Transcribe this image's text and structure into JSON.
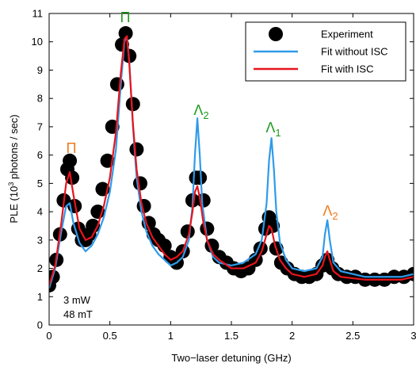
{
  "chart_data": {
    "type": "line",
    "xlabel": "Two−laser detuning (GHz)",
    "ylabel": {
      "text": "PLE (10",
      "sup": "3",
      "rest": " photons / sec)"
    },
    "xlim": [
      0,
      3
    ],
    "ylim": [
      0,
      11
    ],
    "xticks": [
      0,
      0.5,
      1,
      1.5,
      2,
      2.5,
      3
    ],
    "yticks": [
      0,
      1,
      2,
      3,
      4,
      5,
      6,
      7,
      8,
      9,
      10,
      11
    ],
    "legend": "upper right",
    "notes": [
      "3 mW",
      "48 mT"
    ],
    "annotations": [
      {
        "text": "Π",
        "color": "#f07a1c"
      },
      {
        "text": "Π",
        "color": "#1e9a1e"
      },
      {
        "text": "Λ",
        "sub": "2",
        "color": "#1e9a1e"
      },
      {
        "text": "Λ",
        "sub": "1",
        "color": "#1e9a1e"
      },
      {
        "text": "Λ",
        "sub": "2",
        "color": "#f07a1c"
      }
    ],
    "series": [
      {
        "name": "Experiment",
        "color": "#000000",
        "style": "dots",
        "x": [
          0,
          0.03,
          0.06,
          0.09,
          0.12,
          0.15,
          0.17,
          0.19,
          0.21,
          0.24,
          0.27,
          0.3,
          0.33,
          0.36,
          0.4,
          0.44,
          0.48,
          0.52,
          0.56,
          0.6,
          0.63,
          0.66,
          0.69,
          0.72,
          0.75,
          0.78,
          0.82,
          0.86,
          0.9,
          0.95,
          1,
          1.05,
          1.1,
          1.14,
          1.18,
          1.21,
          1.24,
          1.27,
          1.3,
          1.34,
          1.4,
          1.46,
          1.52,
          1.58,
          1.64,
          1.7,
          1.74,
          1.78,
          1.81,
          1.84,
          1.87,
          1.91,
          1.96,
          2.02,
          2.08,
          2.14,
          2.2,
          2.25,
          2.29,
          2.33,
          2.38,
          2.45,
          2.52,
          2.6,
          2.68,
          2.76,
          2.84,
          2.92,
          3
        ],
        "values": [
          1.4,
          1.7,
          2.3,
          3.2,
          4.4,
          5.5,
          5.8,
          5.2,
          4.2,
          3.4,
          3.0,
          3.0,
          3.2,
          3.5,
          4.0,
          4.8,
          5.8,
          7.0,
          8.5,
          9.9,
          10.3,
          9.5,
          7.8,
          6.2,
          5.0,
          4.2,
          3.6,
          3.2,
          3.0,
          2.8,
          2.4,
          2.2,
          2.6,
          3.3,
          4.4,
          5.2,
          5.2,
          4.4,
          3.4,
          2.8,
          2.4,
          2.2,
          2.0,
          1.9,
          2.0,
          2.3,
          2.7,
          3.4,
          3.8,
          3.5,
          2.7,
          2.2,
          2.0,
          1.8,
          1.7,
          1.7,
          1.8,
          2.1,
          2.3,
          2.0,
          1.8,
          1.7,
          1.7,
          1.6,
          1.6,
          1.6,
          1.7,
          1.7,
          1.8
        ]
      },
      {
        "name": "Fit without ISC",
        "color": "#2f9bea",
        "style": "line",
        "x": [
          0,
          0.05,
          0.1,
          0.14,
          0.17,
          0.2,
          0.25,
          0.3,
          0.35,
          0.4,
          0.45,
          0.5,
          0.55,
          0.59,
          0.62,
          0.64,
          0.66,
          0.69,
          0.72,
          0.76,
          0.8,
          0.85,
          0.9,
          0.95,
          1,
          1.05,
          1.1,
          1.15,
          1.18,
          1.2,
          1.22,
          1.24,
          1.26,
          1.3,
          1.35,
          1.4,
          1.5,
          1.6,
          1.7,
          1.75,
          1.79,
          1.81,
          1.83,
          1.85,
          1.87,
          1.9,
          1.95,
          2,
          2.1,
          2.2,
          2.25,
          2.27,
          2.29,
          2.31,
          2.34,
          2.4,
          2.5,
          2.6,
          2.7,
          2.8,
          2.9,
          3
        ],
        "values": [
          1.3,
          2.0,
          3.3,
          4.2,
          4.3,
          3.6,
          2.9,
          2.6,
          2.8,
          3.2,
          3.8,
          4.7,
          6.2,
          8.5,
          10.0,
          10.2,
          9.3,
          7.0,
          5.2,
          4.0,
          3.3,
          2.8,
          2.5,
          2.3,
          2.1,
          2.2,
          2.4,
          3.0,
          4.2,
          6.0,
          7.3,
          6.0,
          4.3,
          3.0,
          2.4,
          2.2,
          2.1,
          2.2,
          2.5,
          3.0,
          4.3,
          5.8,
          6.6,
          5.5,
          4.0,
          2.9,
          2.3,
          2.0,
          1.9,
          2.0,
          2.4,
          3.2,
          3.7,
          3.0,
          2.2,
          1.9,
          1.8,
          1.7,
          1.7,
          1.7,
          1.7,
          1.8
        ]
      },
      {
        "name": "Fit with ISC",
        "color": "#e8141c",
        "style": "line",
        "x": [
          0,
          0.05,
          0.1,
          0.14,
          0.17,
          0.2,
          0.25,
          0.3,
          0.35,
          0.4,
          0.45,
          0.5,
          0.55,
          0.59,
          0.62,
          0.64,
          0.66,
          0.69,
          0.72,
          0.76,
          0.8,
          0.85,
          0.9,
          0.95,
          1,
          1.05,
          1.1,
          1.15,
          1.18,
          1.2,
          1.22,
          1.24,
          1.27,
          1.3,
          1.35,
          1.4,
          1.5,
          1.6,
          1.7,
          1.75,
          1.79,
          1.81,
          1.83,
          1.86,
          1.9,
          1.95,
          2,
          2.1,
          2.2,
          2.25,
          2.27,
          2.29,
          2.31,
          2.34,
          2.4,
          2.5,
          2.6,
          2.7,
          2.8,
          2.9,
          3
        ],
        "values": [
          1.4,
          2.1,
          3.6,
          5.0,
          5.4,
          4.6,
          3.4,
          3.0,
          3.1,
          3.5,
          4.2,
          5.2,
          6.8,
          8.9,
          10.1,
          10.2,
          9.2,
          7.1,
          5.5,
          4.3,
          3.6,
          3.1,
          2.8,
          2.5,
          2.3,
          2.4,
          2.6,
          3.2,
          4.0,
          4.7,
          4.9,
          4.5,
          3.6,
          3.0,
          2.5,
          2.3,
          2.0,
          2.0,
          2.2,
          2.6,
          3.2,
          3.5,
          3.4,
          2.8,
          2.3,
          2.0,
          1.8,
          1.7,
          1.8,
          2.1,
          2.4,
          2.6,
          2.3,
          1.9,
          1.7,
          1.65,
          1.6,
          1.6,
          1.6,
          1.6,
          1.7
        ]
      }
    ]
  }
}
